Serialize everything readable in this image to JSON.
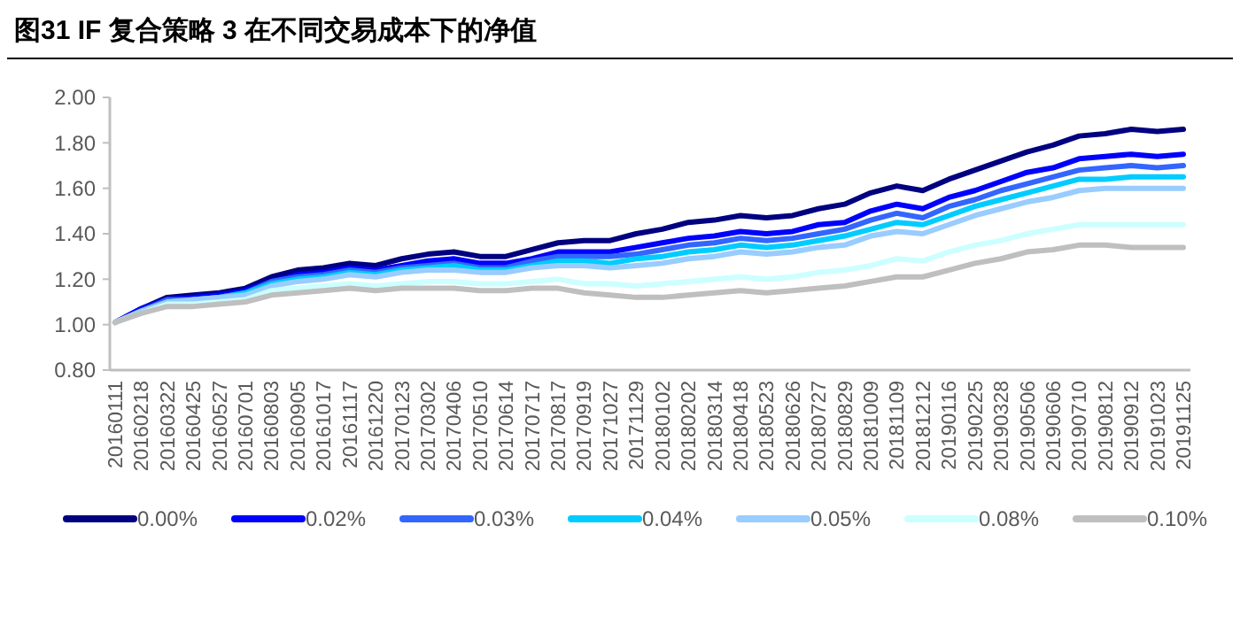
{
  "chart_data": {
    "type": "line",
    "title": "图31 IF 复合策略 3 在不同交易成本下的净值",
    "categories": [
      "20160111",
      "20160218",
      "20160322",
      "20160425",
      "20160527",
      "20160701",
      "20160803",
      "20160905",
      "20161017",
      "20161117",
      "20161220",
      "20170123",
      "20170302",
      "20170406",
      "20170510",
      "20170614",
      "20170717",
      "20170817",
      "20170919",
      "20171027",
      "20171129",
      "20180102",
      "20180202",
      "20180314",
      "20180418",
      "20180523",
      "20180626",
      "20180727",
      "20180829",
      "20181009",
      "20181109",
      "20181212",
      "20190116",
      "20190225",
      "20190328",
      "20190506",
      "20190606",
      "20190710",
      "20190812",
      "20190912",
      "20191023",
      "20191125"
    ],
    "series": [
      {
        "name": "0.00%",
        "color": "#000080",
        "values": [
          1.01,
          1.07,
          1.12,
          1.13,
          1.14,
          1.16,
          1.21,
          1.24,
          1.25,
          1.27,
          1.26,
          1.29,
          1.31,
          1.32,
          1.3,
          1.3,
          1.33,
          1.36,
          1.37,
          1.37,
          1.4,
          1.42,
          1.45,
          1.46,
          1.48,
          1.47,
          1.48,
          1.51,
          1.53,
          1.58,
          1.61,
          1.59,
          1.64,
          1.68,
          1.72,
          1.76,
          1.79,
          1.83,
          1.84,
          1.86,
          1.85,
          1.86
        ]
      },
      {
        "name": "0.02%",
        "color": "#0000ff",
        "values": [
          1.01,
          1.07,
          1.11,
          1.12,
          1.13,
          1.15,
          1.19,
          1.22,
          1.23,
          1.25,
          1.24,
          1.26,
          1.28,
          1.29,
          1.27,
          1.27,
          1.29,
          1.32,
          1.32,
          1.32,
          1.34,
          1.36,
          1.38,
          1.39,
          1.41,
          1.4,
          1.41,
          1.44,
          1.45,
          1.5,
          1.53,
          1.51,
          1.56,
          1.59,
          1.63,
          1.67,
          1.69,
          1.73,
          1.74,
          1.75,
          1.74,
          1.75
        ]
      },
      {
        "name": "0.03%",
        "color": "#3366ff",
        "values": [
          1.01,
          1.06,
          1.11,
          1.11,
          1.12,
          1.14,
          1.19,
          1.21,
          1.22,
          1.24,
          1.23,
          1.25,
          1.26,
          1.27,
          1.25,
          1.25,
          1.28,
          1.3,
          1.3,
          1.3,
          1.31,
          1.33,
          1.35,
          1.36,
          1.38,
          1.37,
          1.38,
          1.4,
          1.42,
          1.46,
          1.49,
          1.47,
          1.52,
          1.55,
          1.59,
          1.62,
          1.65,
          1.68,
          1.69,
          1.7,
          1.69,
          1.7
        ]
      },
      {
        "name": "0.04%",
        "color": "#00ccff",
        "values": [
          null,
          null,
          null,
          1.11,
          1.12,
          1.14,
          1.18,
          1.2,
          1.21,
          1.23,
          1.22,
          1.24,
          1.25,
          1.26,
          1.24,
          1.24,
          1.26,
          1.28,
          1.28,
          1.27,
          1.29,
          1.3,
          1.32,
          1.33,
          1.35,
          1.34,
          1.35,
          1.37,
          1.39,
          1.42,
          1.45,
          1.44,
          1.48,
          1.52,
          1.55,
          1.58,
          1.61,
          1.64,
          1.64,
          1.65,
          1.65,
          1.65
        ]
      },
      {
        "name": "0.05%",
        "color": "#99ccff",
        "values": [
          1.01,
          1.06,
          1.1,
          1.11,
          1.12,
          1.13,
          1.17,
          1.19,
          1.2,
          1.22,
          1.21,
          1.23,
          1.24,
          1.24,
          1.23,
          1.23,
          1.25,
          1.26,
          1.26,
          1.25,
          1.26,
          1.27,
          1.29,
          1.3,
          1.32,
          1.31,
          1.32,
          1.34,
          1.35,
          1.39,
          1.41,
          1.4,
          1.44,
          1.48,
          1.51,
          1.54,
          1.56,
          1.59,
          1.6,
          1.6,
          1.6,
          1.6
        ]
      },
      {
        "name": "0.08%",
        "color": "#ccffff",
        "values": [
          1.01,
          1.05,
          1.09,
          1.09,
          1.1,
          1.11,
          1.15,
          1.16,
          1.17,
          1.18,
          1.17,
          1.18,
          1.19,
          1.19,
          1.18,
          1.18,
          1.19,
          1.2,
          1.18,
          1.18,
          1.17,
          1.18,
          1.19,
          1.2,
          1.21,
          1.2,
          1.21,
          1.23,
          1.24,
          1.26,
          1.29,
          1.28,
          1.32,
          1.35,
          1.37,
          1.4,
          1.42,
          1.44,
          1.44,
          1.44,
          1.44,
          1.44
        ]
      },
      {
        "name": "0.10%",
        "color": "#bfbfbf",
        "values": [
          1.01,
          1.05,
          1.08,
          1.08,
          1.09,
          1.1,
          1.13,
          1.14,
          1.15,
          1.16,
          1.15,
          1.16,
          1.16,
          1.16,
          1.15,
          1.15,
          1.16,
          1.16,
          1.14,
          1.13,
          1.12,
          1.12,
          1.13,
          1.14,
          1.15,
          1.14,
          1.15,
          1.16,
          1.17,
          1.19,
          1.21,
          1.21,
          1.24,
          1.27,
          1.29,
          1.32,
          1.33,
          1.35,
          1.35,
          1.34,
          1.34,
          1.34
        ]
      }
    ],
    "ylim": [
      0.8,
      2.0
    ],
    "yticks": [
      {
        "value": 0.8,
        "label": "0.80"
      },
      {
        "value": 1.0,
        "label": "1.00"
      },
      {
        "value": 1.2,
        "label": "1.20"
      },
      {
        "value": 1.4,
        "label": "1.40"
      },
      {
        "value": 1.6,
        "label": "1.60"
      },
      {
        "value": 1.8,
        "label": "1.80"
      },
      {
        "value": 2.0,
        "label": "2.00"
      }
    ],
    "grid": false,
    "legend": "bottom",
    "marker": "none",
    "line_style": "solid"
  }
}
